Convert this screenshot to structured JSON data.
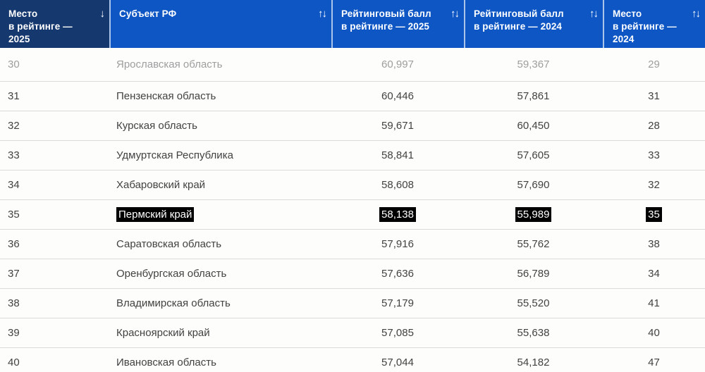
{
  "colors": {
    "header_blue": "#0d56c4",
    "header_dark": "#15386e",
    "header_text": "#ffffff",
    "row_bg": "#fdfdfc",
    "divider": "#dbdbdb",
    "text": "#424242",
    "muted": "#9e9e9e",
    "highlight_bg": "#000000",
    "highlight_text": "#ffffff"
  },
  "table": {
    "columns": [
      {
        "label": "Место\nв рейтинге —\n2025",
        "sort_icon": "↓",
        "active_sort": true
      },
      {
        "label": "Субъект РФ",
        "sort_icon": "↑↓",
        "active_sort": false
      },
      {
        "label": "Рейтинговый балл\nв рейтинге — 2025",
        "sort_icon": "↑↓",
        "active_sort": false
      },
      {
        "label": "Рейтинговый балл\nв рейтинге — 2024",
        "sort_icon": "↑↓",
        "active_sort": false
      },
      {
        "label": "Место\nв рейтинге —\n2024",
        "sort_icon": "↑↓",
        "active_sort": false
      }
    ],
    "rows": [
      {
        "place_2025": "30",
        "region": "Ярославская область",
        "score_2025": "60,997",
        "score_2024": "59,367",
        "place_2024": "29",
        "muted": true,
        "highlighted": false
      },
      {
        "place_2025": "31",
        "region": "Пензенская область",
        "score_2025": "60,446",
        "score_2024": "57,861",
        "place_2024": "31",
        "muted": false,
        "highlighted": false
      },
      {
        "place_2025": "32",
        "region": "Курская область",
        "score_2025": "59,671",
        "score_2024": "60,450",
        "place_2024": "28",
        "muted": false,
        "highlighted": false
      },
      {
        "place_2025": "33",
        "region": "Удмуртская Республика",
        "score_2025": "58,841",
        "score_2024": "57,605",
        "place_2024": "33",
        "muted": false,
        "highlighted": false
      },
      {
        "place_2025": "34",
        "region": "Хабаровский край",
        "score_2025": "58,608",
        "score_2024": "57,690",
        "place_2024": "32",
        "muted": false,
        "highlighted": false
      },
      {
        "place_2025": "35",
        "region": "Пермский край",
        "score_2025": "58,138",
        "score_2024": "55,989",
        "place_2024": "35",
        "muted": false,
        "highlighted": true
      },
      {
        "place_2025": "36",
        "region": "Саратовская область",
        "score_2025": "57,916",
        "score_2024": "55,762",
        "place_2024": "38",
        "muted": false,
        "highlighted": false
      },
      {
        "place_2025": "37",
        "region": "Оренбургская область",
        "score_2025": "57,636",
        "score_2024": "56,789",
        "place_2024": "34",
        "muted": false,
        "highlighted": false
      },
      {
        "place_2025": "38",
        "region": "Владимирская область",
        "score_2025": "57,179",
        "score_2024": "55,520",
        "place_2024": "41",
        "muted": false,
        "highlighted": false
      },
      {
        "place_2025": "39",
        "region": "Красноярский край",
        "score_2025": "57,085",
        "score_2024": "55,638",
        "place_2024": "40",
        "muted": false,
        "highlighted": false
      },
      {
        "place_2025": "40",
        "region": "Ивановская область",
        "score_2025": "57,044",
        "score_2024": "54,182",
        "place_2024": "47",
        "muted": false,
        "highlighted": false
      }
    ]
  }
}
